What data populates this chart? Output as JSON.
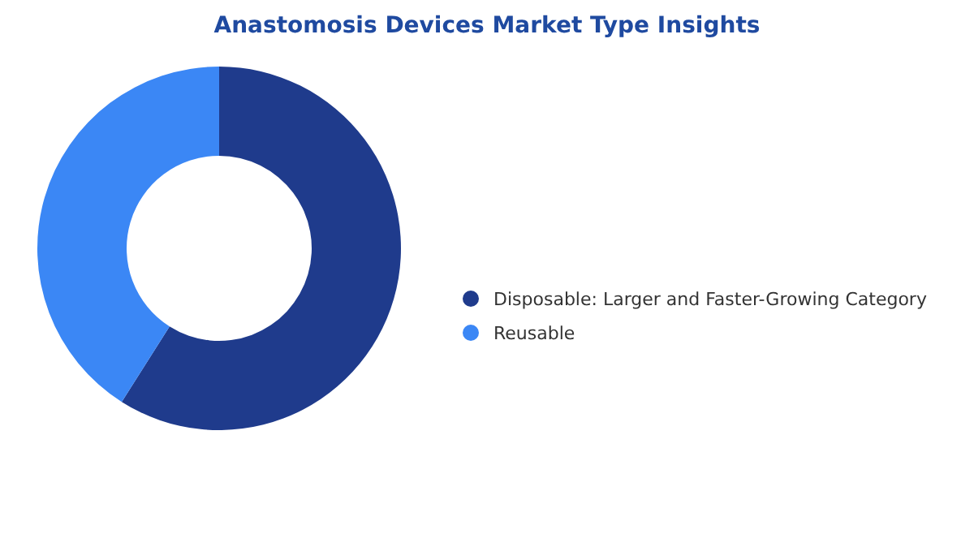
{
  "chart_data": {
    "type": "donut",
    "title": "Anastomosis Devices Market Type Insights",
    "categories": [
      "Disposable: Larger and Faster-Growing Category",
      "Reusable"
    ],
    "values": [
      59,
      41
    ],
    "colors": [
      "#1f3b8c",
      "#3b87f5"
    ],
    "legend": "right"
  }
}
